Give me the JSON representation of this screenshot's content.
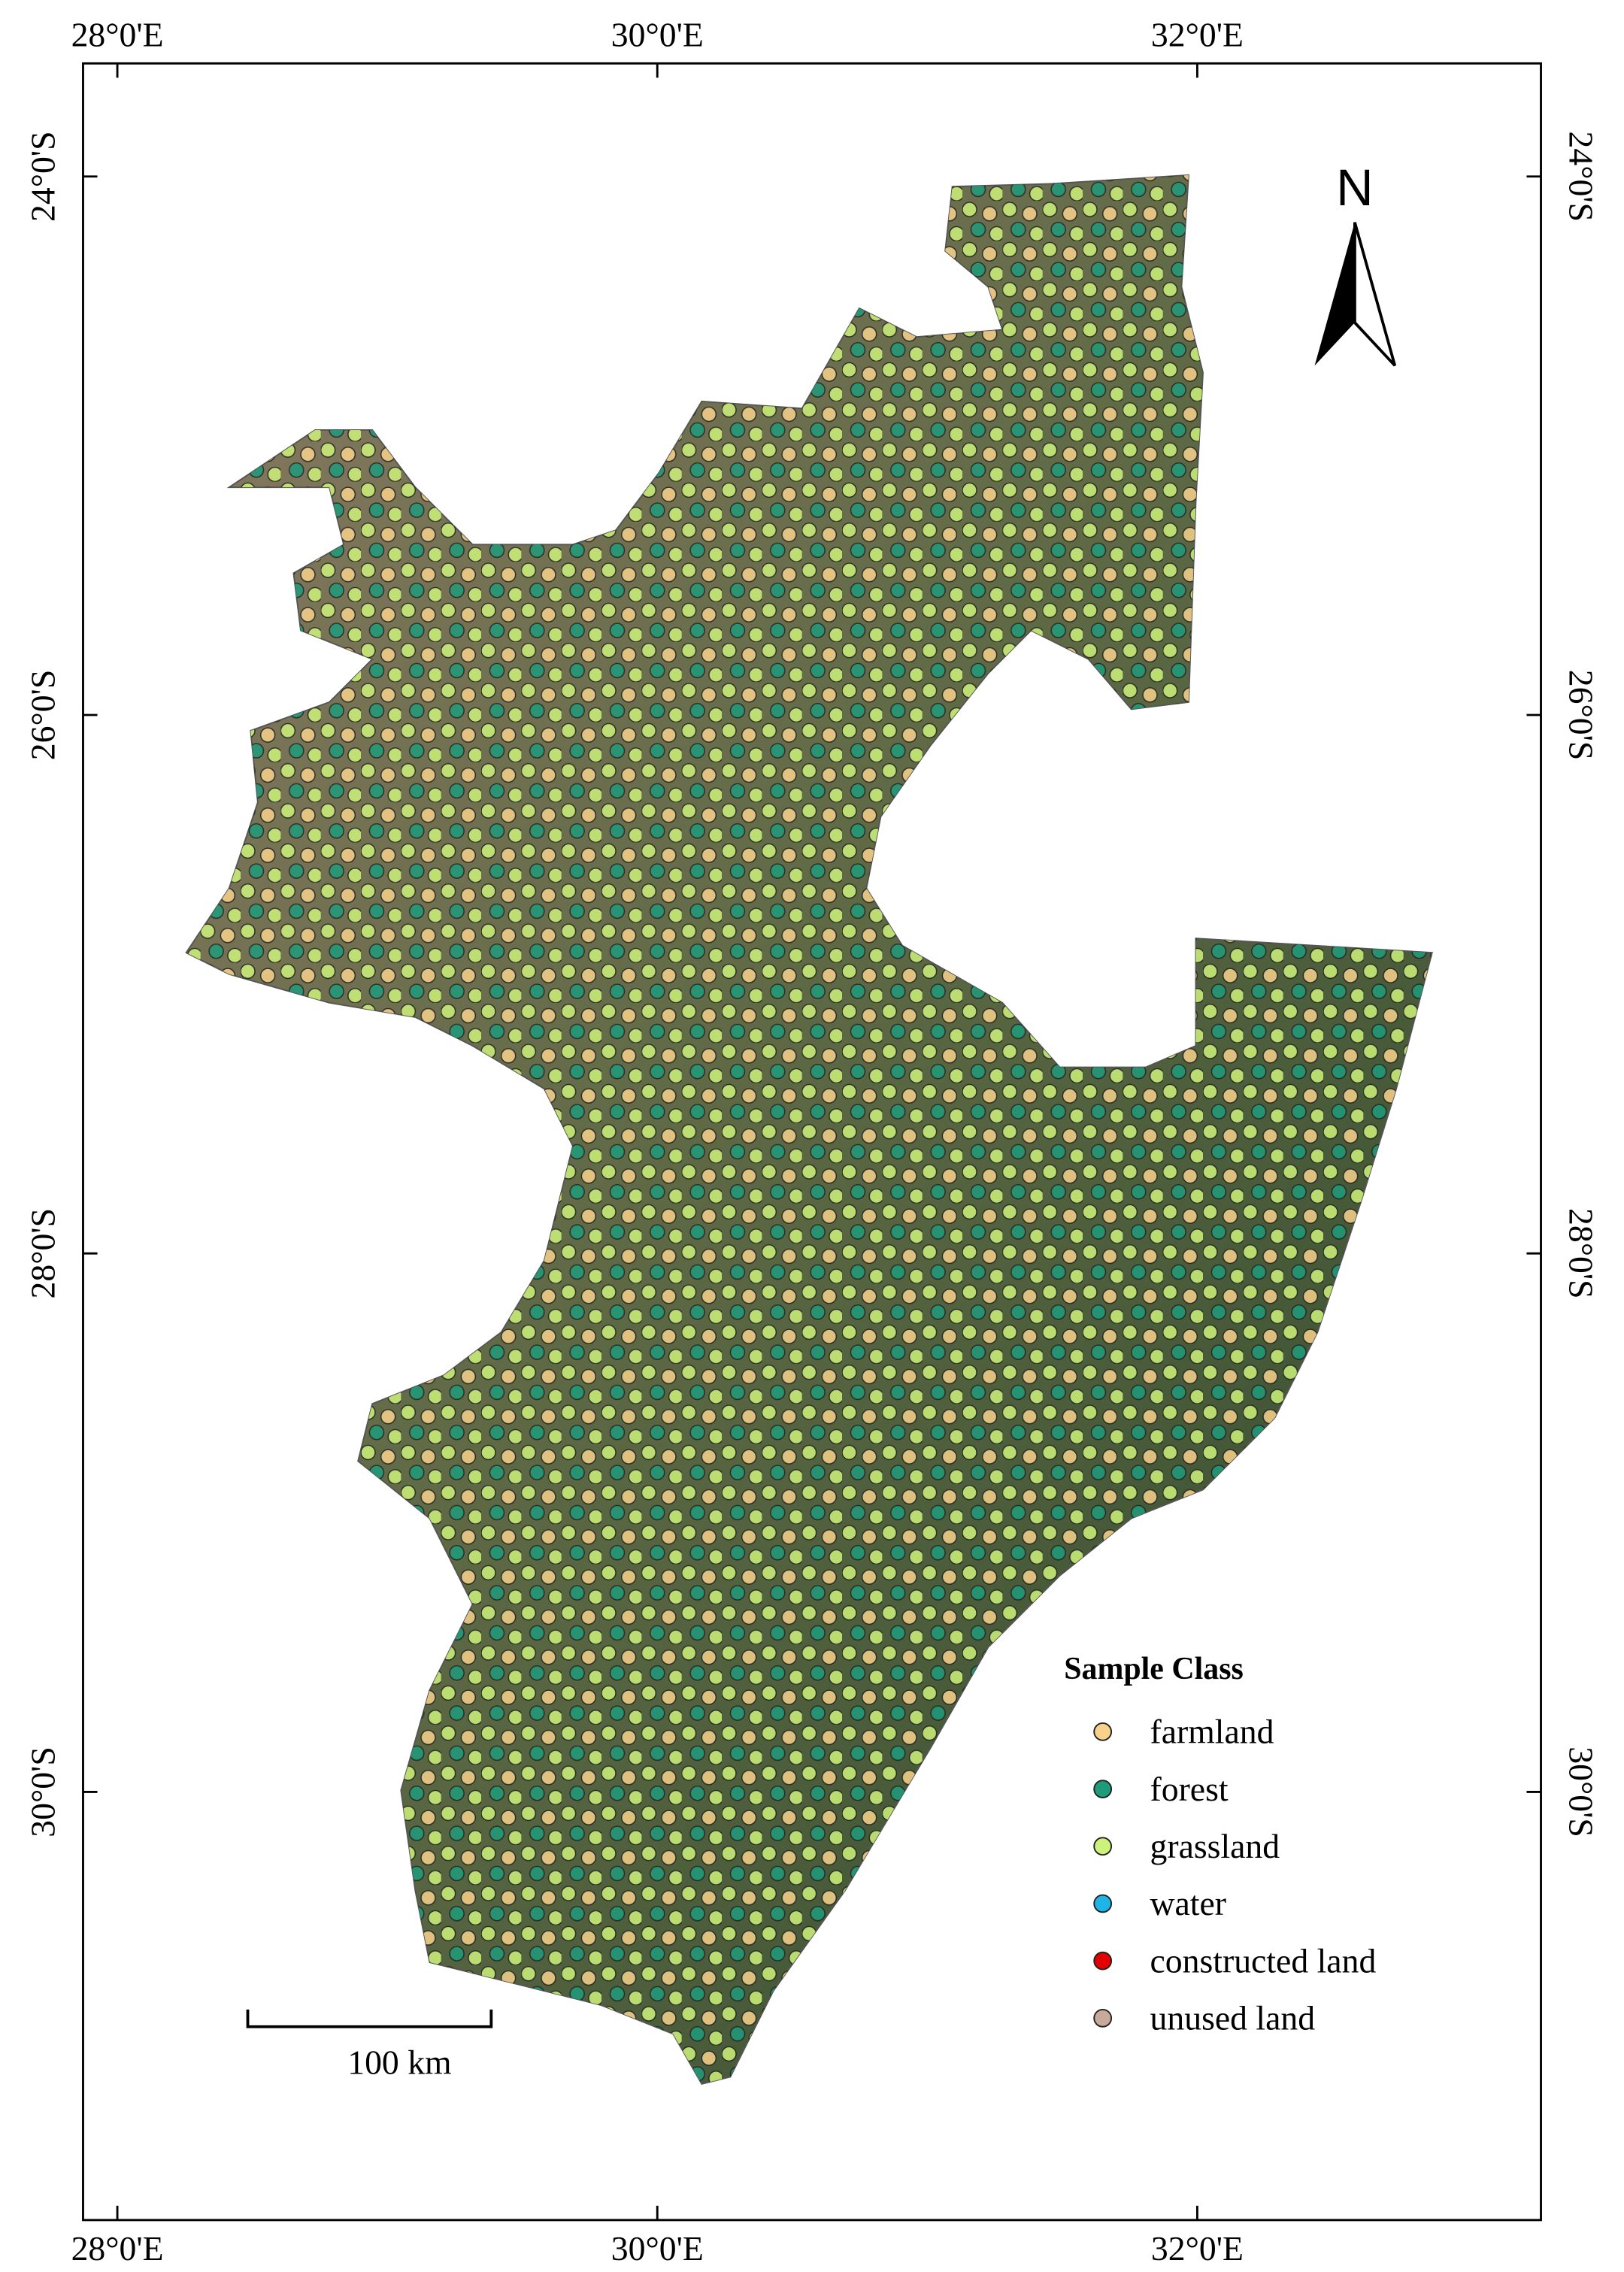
{
  "map": {
    "xlim": [
      27.873,
      33.273
    ],
    "ylim": [
      -31.59,
      -23.58
    ],
    "xticks": [
      {
        "value": 28,
        "label": "28°0'E"
      },
      {
        "value": 30,
        "label": "30°0'E"
      },
      {
        "value": 32,
        "label": "32°0'E"
      }
    ],
    "yticks": [
      {
        "value": -24,
        "label": "24°0'S"
      },
      {
        "value": -26,
        "label": "26°0'S"
      },
      {
        "value": -28,
        "label": "28°0'S"
      },
      {
        "value": -30,
        "label": "30°0'S"
      }
    ],
    "north": "N",
    "scale_bar": "100 km",
    "legend": {
      "title": "Sample Class",
      "items": [
        {
          "name": "farmland",
          "color": "#f8d28b"
        },
        {
          "name": "forest",
          "color": "#1e9b7a"
        },
        {
          "name": "grassland",
          "color": "#cdf27a"
        },
        {
          "name": "water",
          "color": "#1fb4e6"
        },
        {
          "name": "constructed land",
          "color": "#e30000"
        },
        {
          "name": "unused land",
          "color": "#c8aa9a"
        }
      ]
    }
  }
}
